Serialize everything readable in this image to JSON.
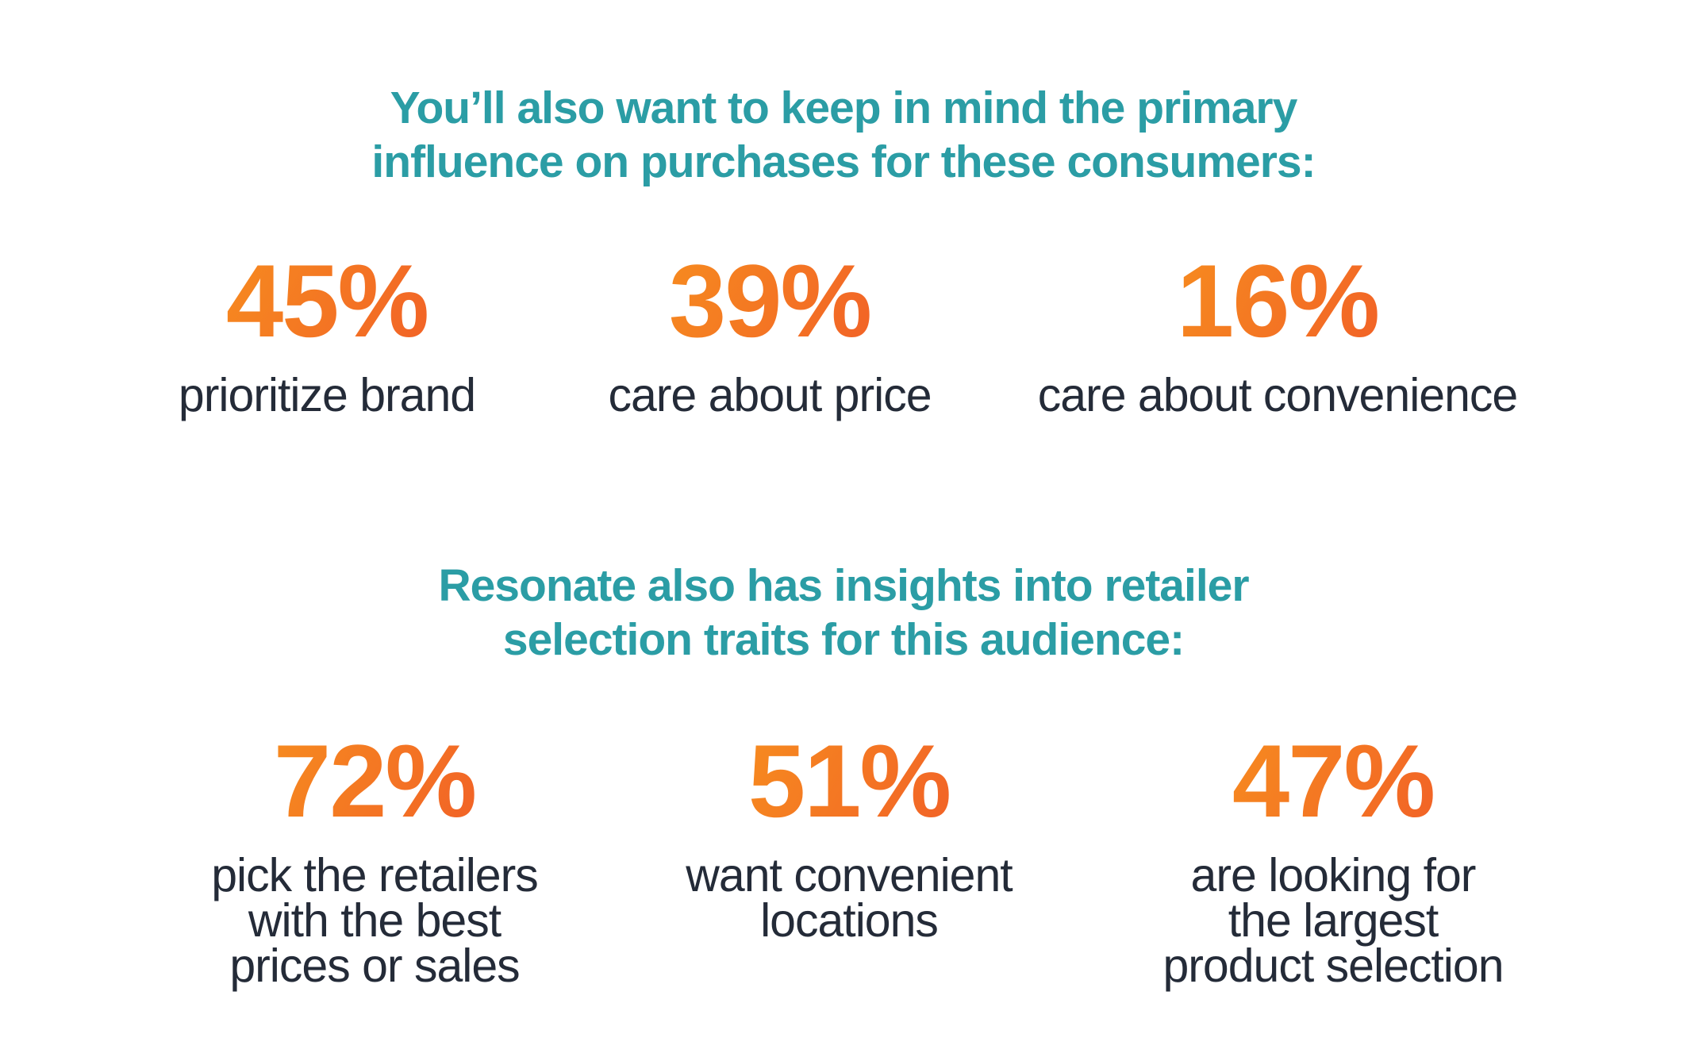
{
  "colors": {
    "background": "#ffffff",
    "heading_teal": "#2B9DA5",
    "stat_orange_gradient_start": "#F89C1C",
    "stat_orange_gradient_end": "#F0512A",
    "label_dark": "#242B38"
  },
  "sections": [
    {
      "heading": "You’ll also want to keep in mind the primary\ninfluence on purchases for these consumers:",
      "stats": [
        {
          "value": "45%",
          "label": "prioritize brand"
        },
        {
          "value": "39%",
          "label": "care about price"
        },
        {
          "value": "16%",
          "label": "care about convenience"
        }
      ]
    },
    {
      "heading": "Resonate also has insights into retailer\nselection traits for this audience:",
      "stats": [
        {
          "value": "72%",
          "label": "pick the retailers\nwith the best\nprices or sales"
        },
        {
          "value": "51%",
          "label": "want convenient\nlocations"
        },
        {
          "value": "47%",
          "label": "are looking for\nthe largest\nproduct selection"
        }
      ]
    }
  ],
  "chart_data": [
    {
      "type": "table",
      "title": "You’ll also want to keep in mind the primary influence on purchases for these consumers:",
      "categories": [
        "prioritize brand",
        "care about price",
        "care about convenience"
      ],
      "values": [
        45,
        39,
        16
      ],
      "unit": "%",
      "value_color": "orange-gradient",
      "layout": "three-column stat row"
    },
    {
      "type": "table",
      "title": "Resonate also has insights into retailer selection traits for this audience:",
      "categories": [
        "pick the retailers with the best prices or sales",
        "want convenient locations",
        "are looking for the largest product selection"
      ],
      "values": [
        72,
        51,
        47
      ],
      "unit": "%",
      "value_color": "orange-gradient",
      "layout": "three-column stat row"
    }
  ]
}
